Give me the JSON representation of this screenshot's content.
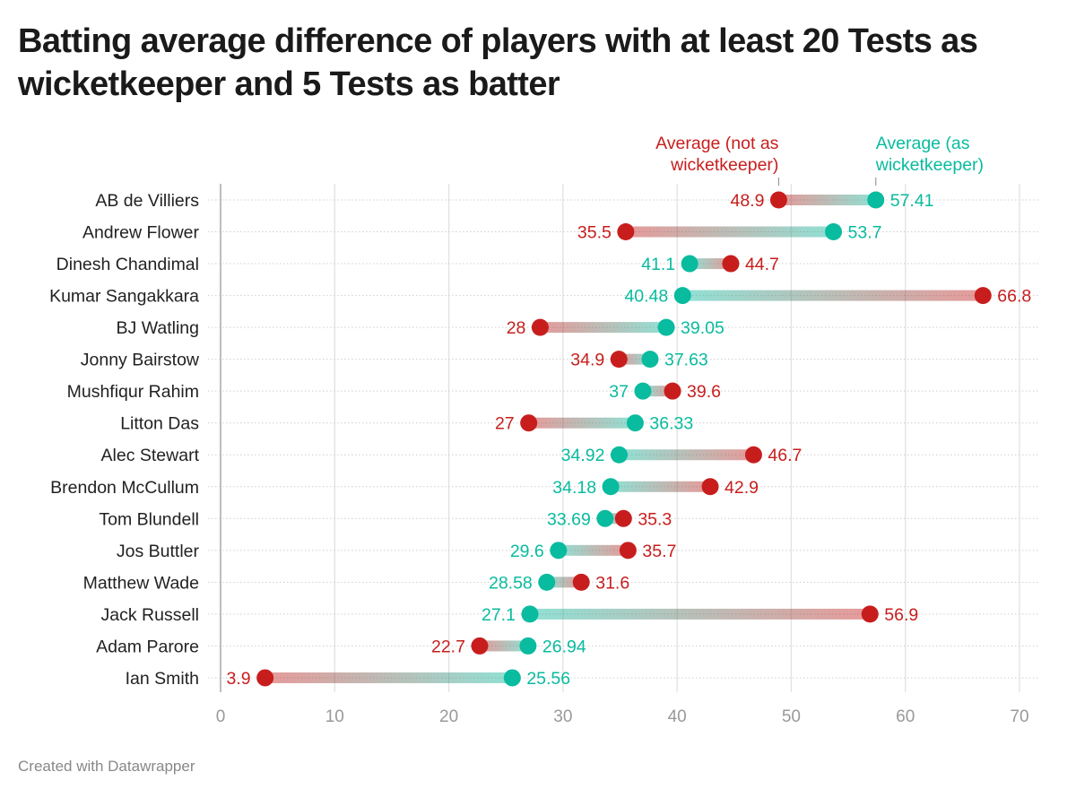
{
  "title": "Batting average difference of players with at least 20 Tests as wicketkeeper and 5 Tests as batter",
  "footer": "Created with Datawrapper",
  "colors": {
    "not_wk": "#c71e1d",
    "wk": "#09bb9f",
    "grid": "#e2e2e2",
    "axis_text": "#999999",
    "label_text": "#222222"
  },
  "chart_data": {
    "type": "dot-range",
    "title": "Batting average difference of players with at least 20 Tests as wicketkeeper and 5 Tests as batter",
    "xlabel": "",
    "ylabel": "",
    "xlim": [
      0,
      70
    ],
    "x_ticks": [
      0,
      10,
      20,
      30,
      40,
      50,
      60,
      70
    ],
    "grid": true,
    "legend_placement": "top, annotating first row",
    "series": [
      {
        "key": "not_wk",
        "name": "Average (not as wicketkeeper)"
      },
      {
        "key": "wk",
        "name": "Average (as wicketkeeper)"
      }
    ],
    "categories": [
      "AB de Villiers",
      "Andrew Flower",
      "Dinesh Chandimal",
      "Kumar Sangakkara",
      "BJ Watling",
      "Jonny Bairstow",
      "Mushfiqur Rahim",
      "Litton Das",
      "Alec Stewart",
      "Brendon McCullum",
      "Tom Blundell",
      "Jos Buttler",
      "Matthew Wade",
      "Jack Russell",
      "Adam Parore",
      "Ian Smith"
    ],
    "rows": [
      {
        "player": "AB de Villiers",
        "not_wk": 48.9,
        "wk": 57.41,
        "not_wk_label": "48.9",
        "wk_label": "57.41"
      },
      {
        "player": "Andrew Flower",
        "not_wk": 35.5,
        "wk": 53.7,
        "not_wk_label": "35.5",
        "wk_label": "53.7"
      },
      {
        "player": "Dinesh Chandimal",
        "not_wk": 44.7,
        "wk": 41.1,
        "not_wk_label": "44.7",
        "wk_label": "41.1"
      },
      {
        "player": "Kumar Sangakkara",
        "not_wk": 66.8,
        "wk": 40.48,
        "not_wk_label": "66.8",
        "wk_label": "40.48"
      },
      {
        "player": "BJ Watling",
        "not_wk": 28,
        "wk": 39.05,
        "not_wk_label": "28",
        "wk_label": "39.05"
      },
      {
        "player": "Jonny Bairstow",
        "not_wk": 34.9,
        "wk": 37.63,
        "not_wk_label": "34.9",
        "wk_label": "37.63"
      },
      {
        "player": "Mushfiqur Rahim",
        "not_wk": 39.6,
        "wk": 37,
        "not_wk_label": "39.6",
        "wk_label": "37"
      },
      {
        "player": "Litton Das",
        "not_wk": 27,
        "wk": 36.33,
        "not_wk_label": "27",
        "wk_label": "36.33"
      },
      {
        "player": "Alec Stewart",
        "not_wk": 46.7,
        "wk": 34.92,
        "not_wk_label": "46.7",
        "wk_label": "34.92"
      },
      {
        "player": "Brendon McCullum",
        "not_wk": 42.9,
        "wk": 34.18,
        "not_wk_label": "42.9",
        "wk_label": "34.18"
      },
      {
        "player": "Tom Blundell",
        "not_wk": 35.3,
        "wk": 33.69,
        "not_wk_label": "35.3",
        "wk_label": "33.69"
      },
      {
        "player": "Jos Buttler",
        "not_wk": 35.7,
        "wk": 29.6,
        "not_wk_label": "35.7",
        "wk_label": "29.6"
      },
      {
        "player": "Matthew Wade",
        "not_wk": 31.6,
        "wk": 28.58,
        "not_wk_label": "31.6",
        "wk_label": "28.58"
      },
      {
        "player": "Jack Russell",
        "not_wk": 56.9,
        "wk": 27.1,
        "not_wk_label": "56.9",
        "wk_label": "27.1"
      },
      {
        "player": "Adam Parore",
        "not_wk": 22.7,
        "wk": 26.94,
        "not_wk_label": "22.7",
        "wk_label": "26.94"
      },
      {
        "player": "Ian Smith",
        "not_wk": 3.9,
        "wk": 25.56,
        "not_wk_label": "3.9",
        "wk_label": "25.56"
      }
    ],
    "legend_annotations": {
      "not_wk": [
        "Average (not as",
        "wicketkeeper)"
      ],
      "wk": [
        "Average (as",
        "wicketkeeper)"
      ]
    }
  }
}
